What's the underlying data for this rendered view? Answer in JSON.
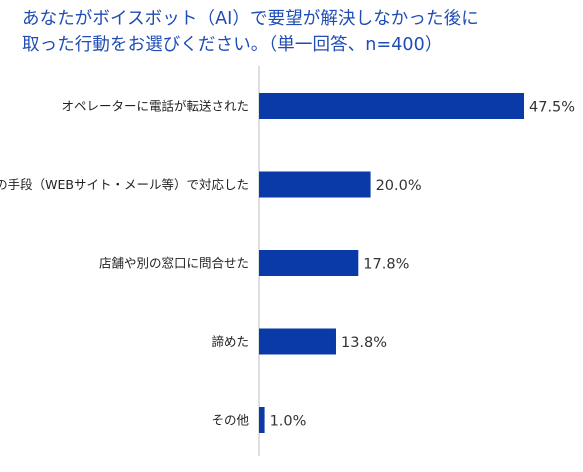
{
  "chart_data": {
    "type": "bar",
    "orientation": "horizontal",
    "title_lines": [
      "あなたがボイスボット（AI）で要望が解決しなかった後に",
      "取った行動をお選びください。（単一回答、n=400）"
    ],
    "categories": [
      "オペレーターに電話が転送された",
      "他の手段（WEBサイト・メール等）で対応した",
      "店舗や別の窓口に問合せた",
      "諦めた",
      "その他"
    ],
    "values": [
      47.5,
      20.0,
      17.8,
      13.8,
      1.0
    ],
    "value_labels": [
      "47.5%",
      "20.0%",
      "17.8%",
      "13.8%",
      "1.0%"
    ],
    "unit": "%",
    "xlim": [
      0,
      47.5
    ],
    "grid": false,
    "legend": "none",
    "colors": {
      "bar": "#0a3aa8",
      "title": "#1f4db5",
      "axis": "#bfbfbf"
    }
  }
}
